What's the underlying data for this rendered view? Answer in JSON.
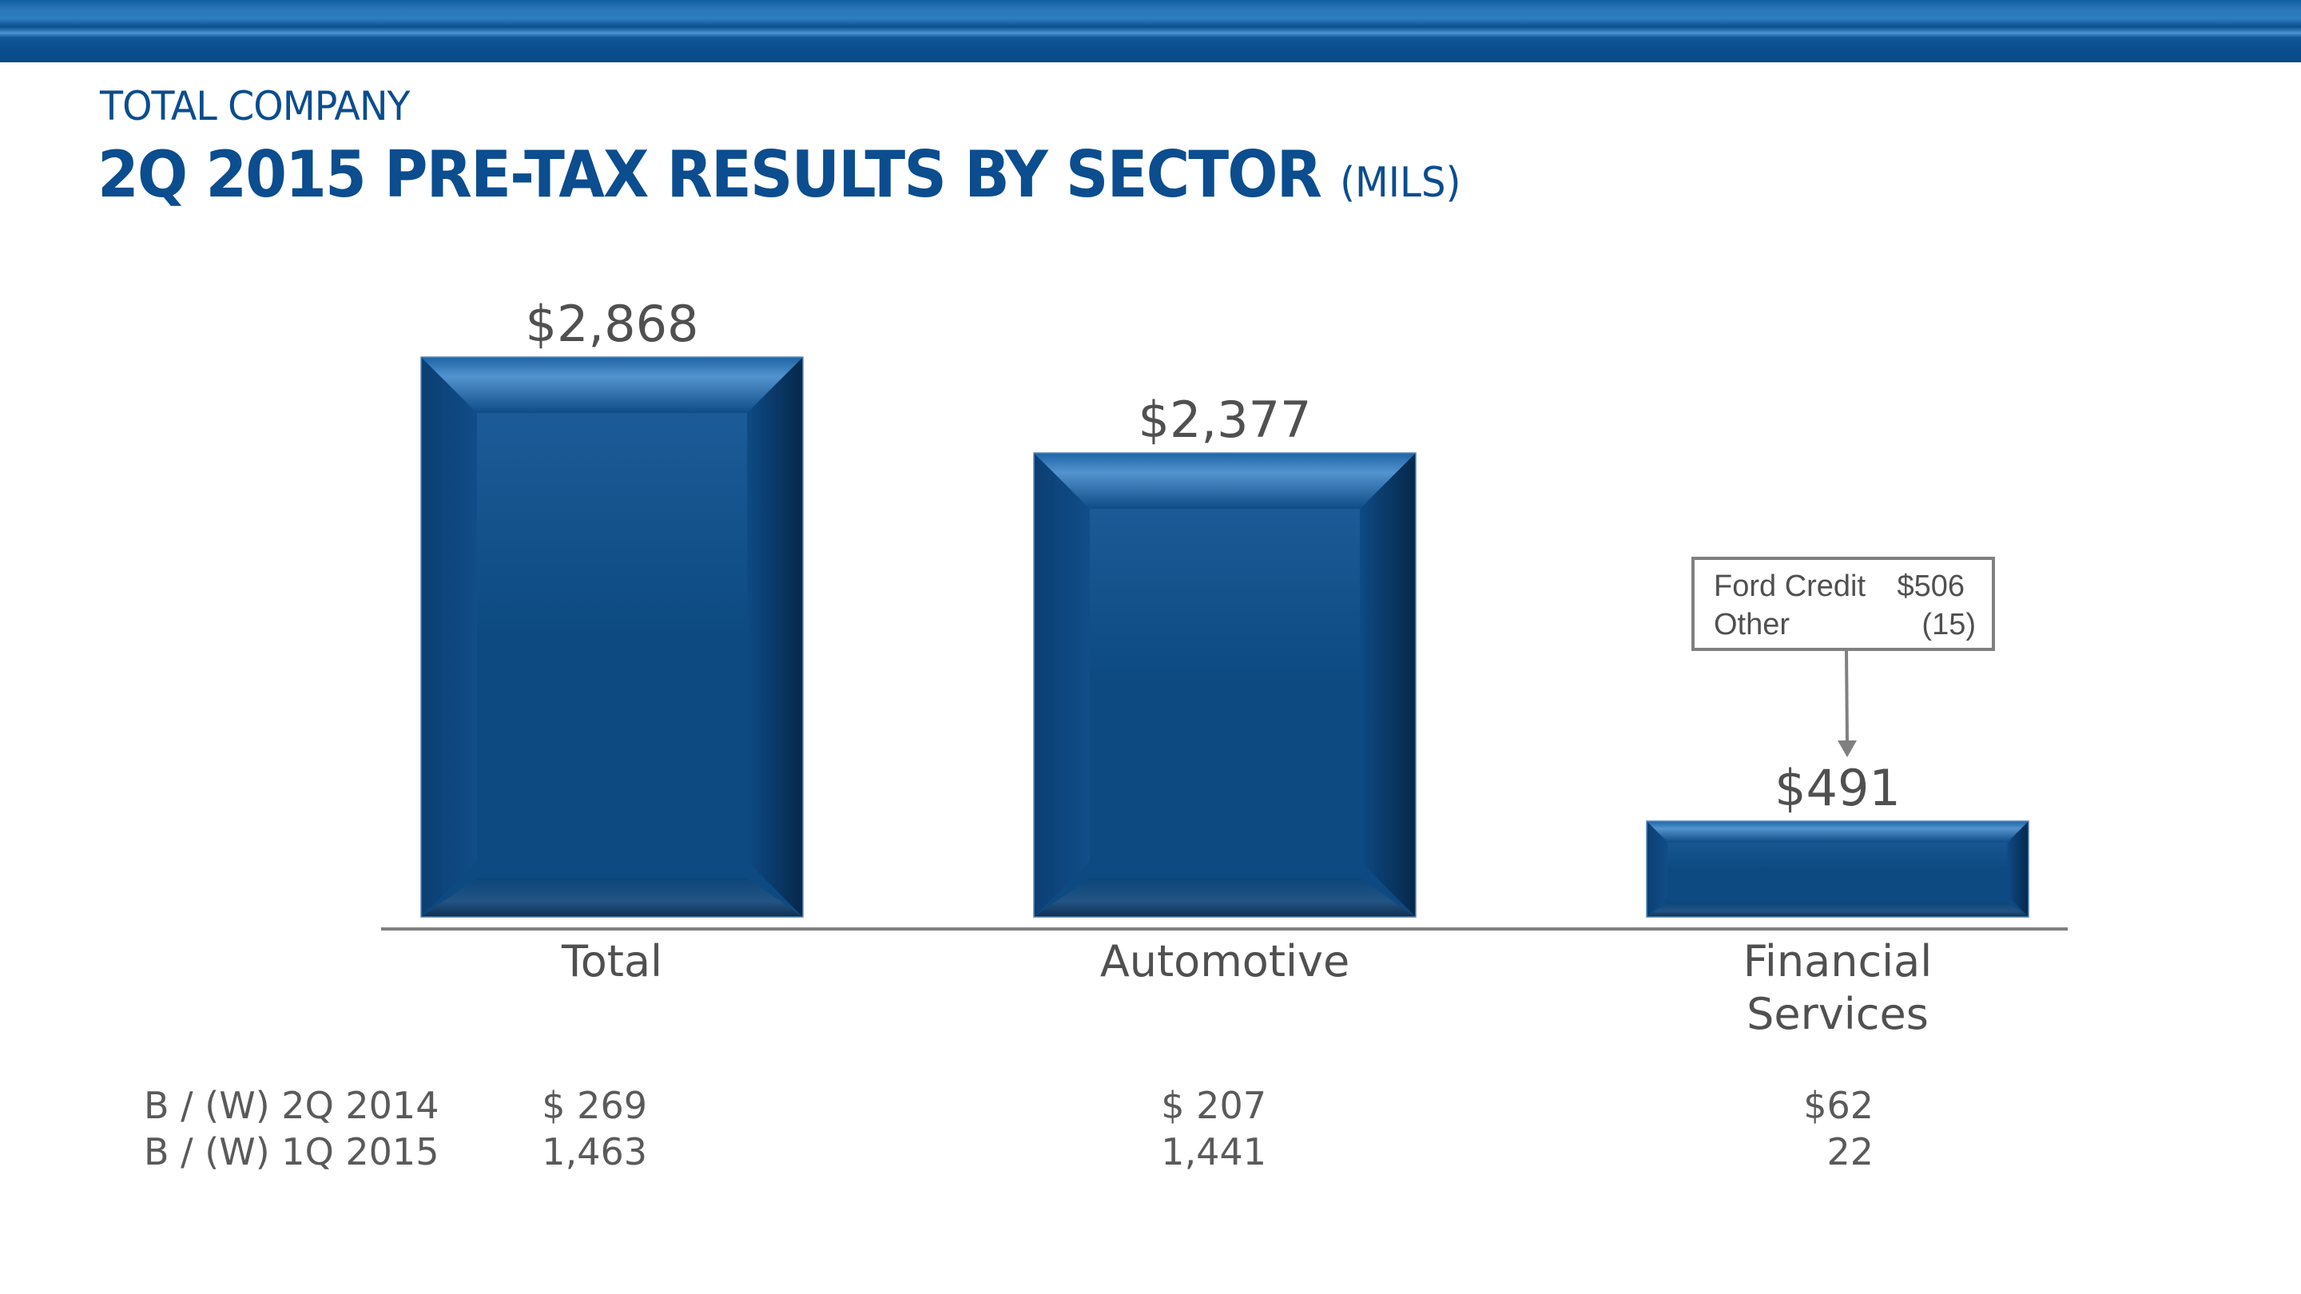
{
  "header": {
    "subtitle": "TOTAL COMPANY",
    "title": "2Q 2015 PRE-TAX RESULTS BY SECTOR",
    "title_unit": "(MILS)"
  },
  "colors": {
    "brand_blue": "#0b4d8e",
    "bar_blue": "#0d4a82",
    "text_gray": "#505050",
    "axis_gray": "#808080"
  },
  "chart_data": {
    "type": "bar",
    "title": "2Q 2015 PRE-TAX RESULTS BY SECTOR (MILS)",
    "categories": [
      "Total",
      "Automotive",
      "Financial Services"
    ],
    "category_lines": [
      [
        "Total"
      ],
      [
        "Automotive"
      ],
      [
        "Financial",
        "Services"
      ]
    ],
    "values": [
      2868,
      2377,
      491
    ],
    "value_labels": [
      "$2,868",
      "$2,377",
      "$491"
    ],
    "xlabel": "",
    "ylabel": "",
    "ylim": [
      0,
      3000
    ],
    "grid": false,
    "legend": "none"
  },
  "callout": {
    "target": "Financial Services",
    "rows": [
      {
        "label": "Ford Credit",
        "value": "$506"
      },
      {
        "label": "Other",
        "value": "(15)"
      }
    ]
  },
  "comparison_table": {
    "rows": [
      {
        "label": "B / (W) 2Q 2014",
        "values": [
          "$  269",
          "$  207",
          "$62"
        ]
      },
      {
        "label": "B / (W) 1Q 2015",
        "values": [
          "1,463",
          "1,441",
          "22"
        ]
      }
    ]
  }
}
